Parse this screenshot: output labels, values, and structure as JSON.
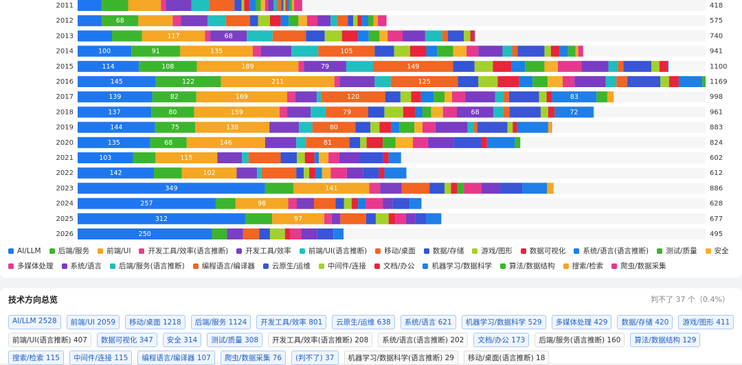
{
  "chart_data": {
    "type": "stacked_barh",
    "categories": [
      "2011",
      "2012",
      "2013",
      "2014",
      "2015",
      "2016",
      "2017",
      "2018",
      "2019",
      "2020",
      "2021",
      "2022",
      "2023",
      "2024",
      "2025",
      "2026"
    ],
    "totals": [
      418,
      575,
      740,
      941,
      1100,
      1169,
      998,
      961,
      883,
      824,
      602,
      612,
      886,
      628,
      677,
      495
    ],
    "series": [
      {
        "name": "AI/LLM",
        "color": "#1f77f0",
        "values": [
          45,
          45,
          64,
          100,
          114,
          145,
          139,
          137,
          144,
          135,
          103,
          142,
          349,
          257,
          312,
          250
        ]
      },
      {
        "name": "后端/服务",
        "color": "#3cb52e",
        "values": [
          49,
          68,
          56,
          91,
          108,
          122,
          82,
          80,
          75,
          68,
          42,
          52,
          53,
          37,
          50,
          28
        ]
      },
      {
        "name": "前端/UI",
        "color": "#f5a623",
        "values": [
          61,
          64,
          117,
          135,
          189,
          211,
          169,
          159,
          138,
          146,
          115,
          102,
          141,
          98,
          97,
          0
        ]
      },
      {
        "name": "开发工具/效率(语言推断)",
        "color": "#e83e8c",
        "values": [
          9,
          15,
          10,
          15,
          10,
          10,
          15,
          14,
          0,
          0,
          0,
          0,
          20,
          16,
          14,
          0
        ]
      },
      {
        "name": "开发工具/效率",
        "color": "#7b3fc4",
        "values": [
          48,
          50,
          68,
          57,
          79,
          65,
          40,
          44,
          55,
          58,
          46,
          38,
          40,
          32,
          16,
          30
        ]
      },
      {
        "name": "前端/UI(语言推断)",
        "color": "#20c0c0",
        "values": [
          33,
          34,
          48,
          50,
          50,
          30,
          8,
          28,
          25,
          18,
          12,
          8,
          0,
          0,
          0,
          0
        ]
      },
      {
        "name": "移动/桌面",
        "color": "#f26522",
        "values": [
          47,
          45,
          62,
          105,
          149,
          125,
          120,
          79,
          80,
          81,
          60,
          65,
          52,
          40,
          48,
          30
        ]
      },
      {
        "name": "数据/存储",
        "color": "#3355d6",
        "values": [
          13,
          15,
          35,
          36,
          40,
          38,
          28,
          30,
          28,
          20,
          30,
          14,
          28,
          16,
          18,
          20
        ]
      },
      {
        "name": "游戏/图形",
        "color": "#a3d12a",
        "values": [
          5,
          22,
          32,
          30,
          34,
          36,
          20,
          35,
          17,
          12,
          15,
          10,
          12,
          14,
          24,
          28
        ]
      },
      {
        "name": "数据可视化",
        "color": "#e8253a",
        "values": [
          10,
          20,
          30,
          30,
          35,
          40,
          18,
          22,
          22,
          30,
          18,
          12,
          12,
          12,
          12,
          10
        ]
      },
      {
        "name": "系统/语言(语言推断)",
        "color": "#1a7fe8",
        "values": [
          12,
          15,
          20,
          20,
          25,
          25,
          24,
          14,
          15,
          0,
          8,
          12,
          0,
          14,
          0,
          0
        ]
      },
      {
        "name": "测试/质量",
        "color": "#3db52a",
        "values": [
          9,
          18,
          20,
          30,
          36,
          28,
          20,
          16,
          28,
          24,
          0,
          0,
          12,
          0,
          0,
          0
        ]
      },
      {
        "name": "安全",
        "color": "#f7b02a",
        "values": [
          8,
          16,
          15,
          25,
          25,
          28,
          14,
          22,
          15,
          32,
          18,
          16,
          0,
          0,
          0,
          0
        ]
      },
      {
        "name": "多媒体处理",
        "color": "#e8388c",
        "values": [
          6,
          20,
          28,
          22,
          44,
          22,
          25,
          26,
          24,
          28,
          20,
          30,
          33,
          32,
          20,
          20
        ]
      },
      {
        "name": "系统/语言",
        "color": "#7a3cc4",
        "values": [
          10,
          24,
          42,
          45,
          50,
          58,
          55,
          68,
          60,
          48,
          38,
          30,
          34,
          18,
          18,
          30
        ]
      },
      {
        "name": "后端/服务(语言推断)",
        "color": "#1fbdbd",
        "values": [
          6,
          12,
          32,
          18,
          18,
          20,
          16,
          18,
          12,
          0,
          0,
          0,
          0,
          0,
          0,
          0
        ]
      },
      {
        "name": "编程语言/编译器",
        "color": "#f26522",
        "values": [
          8,
          20,
          10,
          10,
          10,
          20,
          10,
          12,
          6,
          0,
          0,
          0,
          0,
          0,
          0,
          0
        ]
      },
      {
        "name": "云原生/运维",
        "color": "#3a55d6",
        "values": [
          4,
          10,
          30,
          50,
          52,
          62,
          56,
          58,
          56,
          52,
          44,
          30,
          42,
          32,
          20,
          30
        ]
      },
      {
        "name": "中间件/连接",
        "color": "#9ed42a",
        "values": [
          4,
          8,
          12,
          12,
          15,
          16,
          14,
          14,
          10,
          0,
          0,
          0,
          0,
          0,
          0,
          0
        ]
      },
      {
        "name": "文档/办公",
        "color": "#e8253a",
        "values": [
          3,
          8,
          8,
          16,
          15,
          18,
          10,
          12,
          8,
          10,
          10,
          10,
          0,
          0,
          0,
          0
        ]
      },
      {
        "name": "机器学习/数据科学",
        "color": "#1f7fe8",
        "values": [
          5,
          12,
          1,
          16,
          2,
          44,
          83,
          72,
          58,
          52,
          23,
          41,
          46,
          22,
          28,
          19
        ]
      },
      {
        "name": "算法/数据结构",
        "color": "#3db52e",
        "values": [
          4,
          10,
          0,
          14,
          0,
          6,
          20,
          1,
          0,
          10,
          0,
          0,
          0,
          0,
          0,
          0
        ]
      },
      {
        "name": "搜索/检索",
        "color": "#f5a623",
        "values": [
          4,
          8,
          0,
          5,
          0,
          0,
          12,
          0,
          6,
          0,
          0,
          0,
          12,
          0,
          0,
          0
        ]
      },
      {
        "name": "爬虫/数据采集",
        "color": "#e8388c",
        "values": [
          15,
          16,
          0,
          9,
          0,
          0,
          0,
          0,
          1,
          0,
          0,
          0,
          0,
          0,
          0,
          0
        ]
      }
    ]
  },
  "overview": {
    "title": "技术方向总览",
    "note": "判不了 37 个（0.4%）",
    "tags": [
      {
        "name": "AI/LLM",
        "count": 2528
      },
      {
        "name": "前端/UI",
        "count": 2059
      },
      {
        "name": "移动/桌面",
        "count": 1218
      },
      {
        "name": "后端/服务",
        "count": 1124
      },
      {
        "name": "开发工具/效率",
        "count": 801
      },
      {
        "name": "云原生/运维",
        "count": 638
      },
      {
        "name": "系统/语言",
        "count": 621
      },
      {
        "name": "机器学习/数据科学",
        "count": 529
      },
      {
        "name": "多媒体处理",
        "count": 429
      },
      {
        "name": "数据/存储",
        "count": 420
      },
      {
        "name": "游戏/图形",
        "count": 411
      },
      {
        "name": "前端/UI(语言推断)",
        "count": 407
      },
      {
        "name": "数据可视化",
        "count": 347
      },
      {
        "name": "安全",
        "count": 314
      },
      {
        "name": "测试/质量",
        "count": 308
      },
      {
        "name": "开发工具/效率(语言推断)",
        "count": 208
      },
      {
        "name": "系统/语言(语言推断)",
        "count": 202
      },
      {
        "name": "文档/办公",
        "count": 173
      },
      {
        "name": "后端/服务(语言推断)",
        "count": 160
      },
      {
        "name": "算法/数据结构",
        "count": 129
      },
      {
        "name": "搜索/检索",
        "count": 115
      },
      {
        "name": "中间件/连接",
        "count": 115
      },
      {
        "name": "编程语言/编译器",
        "count": 107
      },
      {
        "name": "爬虫/数据采集",
        "count": 76
      },
      {
        "name": "(判不了)",
        "count": 37
      },
      {
        "name": "机器学习/数据科学(语言推断)",
        "count": 29
      },
      {
        "name": "移动/桌面(语言推断)",
        "count": 18
      }
    ]
  }
}
